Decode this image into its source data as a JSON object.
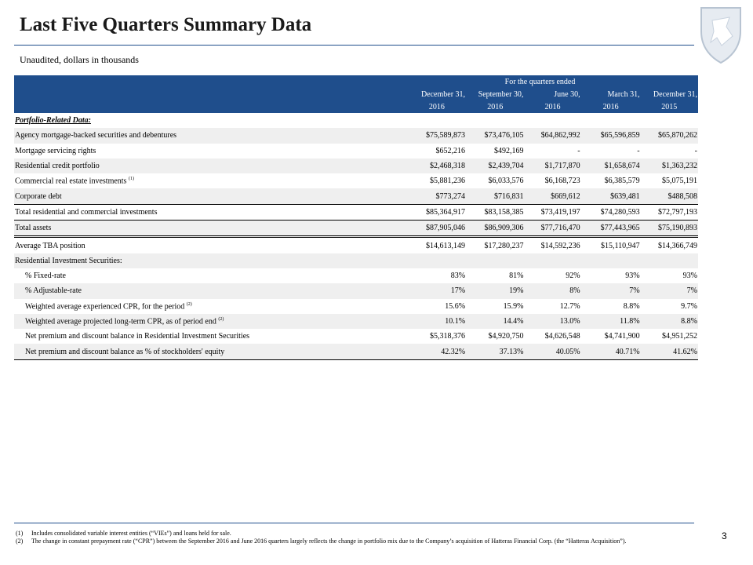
{
  "header": {
    "title": "Last Five Quarters Summary Data",
    "subtitle": "Unaudited, dollars in thousands"
  },
  "table": {
    "group_header": "For the quarters ended",
    "columns": [
      {
        "line1": "December 31,",
        "line2": "2016"
      },
      {
        "line1": "September 30,",
        "line2": "2016"
      },
      {
        "line1": "June 30,",
        "line2": "2016"
      },
      {
        "line1": "March 31,",
        "line2": "2016"
      },
      {
        "line1": "December 31,",
        "line2": "2015"
      }
    ],
    "rows": [
      {
        "label": "Portfolio-Related Data:"
      },
      {
        "label": "Agency mortgage-backed securities and debentures",
        "values": [
          "$75,589,873",
          "$73,476,105",
          "$64,862,992",
          "$65,596,859",
          "$65,870,262"
        ]
      },
      {
        "label": "Mortgage servicing rights",
        "values": [
          "$652,216",
          "$492,169",
          "-",
          "-",
          "-"
        ]
      },
      {
        "label": "Residential credit portfolio",
        "values": [
          "$2,468,318",
          "$2,439,704",
          "$1,717,870",
          "$1,658,674",
          "$1,363,232"
        ]
      },
      {
        "label": "Commercial real estate investments",
        "note": "(1)",
        "values": [
          "$5,881,236",
          "$6,033,576",
          "$6,168,723",
          "$6,385,579",
          "$5,075,191"
        ]
      },
      {
        "label": "Corporate debt",
        "values": [
          "$773,274",
          "$716,831",
          "$669,612",
          "$639,481",
          "$488,508"
        ]
      },
      {
        "label": "Total residential and commercial investments",
        "values": [
          "$85,364,917",
          "$83,158,385",
          "$73,419,197",
          "$74,280,593",
          "$72,797,193"
        ]
      },
      {
        "label": "Total assets",
        "values": [
          "$87,905,046",
          "$86,909,306",
          "$77,716,470",
          "$77,443,965",
          "$75,190,893"
        ]
      },
      {
        "label": "Average TBA position",
        "values": [
          "$14,613,149",
          "$17,280,237",
          "$14,592,236",
          "$15,110,947",
          "$14,366,749"
        ]
      },
      {
        "label": "Residential Investment Securities:"
      },
      {
        "label": "% Fixed-rate",
        "values": [
          "83%",
          "81%",
          "92%",
          "93%",
          "93%"
        ]
      },
      {
        "label": "% Adjustable-rate",
        "values": [
          "17%",
          "19%",
          "8%",
          "7%",
          "7%"
        ]
      },
      {
        "label": "Weighted average experienced CPR, for the period",
        "note": "(2)",
        "values": [
          "15.6%",
          "15.9%",
          "12.7%",
          "8.8%",
          "9.7%"
        ]
      },
      {
        "label": "Weighted average projected long-term CPR, as of period end",
        "note": "(2)",
        "values": [
          "10.1%",
          "14.4%",
          "13.0%",
          "11.8%",
          "8.8%"
        ]
      },
      {
        "label": "Net premium and discount balance in Residential Investment Securities",
        "values": [
          "$5,318,376",
          "$4,920,750",
          "$4,626,548",
          "$4,741,900",
          "$4,951,252"
        ]
      },
      {
        "label": "Net premium and discount balance as % of stockholders' equity",
        "values": [
          "42.32%",
          "37.13%",
          "40.05%",
          "40.71%",
          "41.62%"
        ]
      }
    ]
  },
  "footnotes": [
    {
      "marker": "(1)",
      "text": "Includes consolidated variable interest entities (“VIEs”) and loans held for sale."
    },
    {
      "marker": "(2)",
      "text": "The change in constant prepayment rate (“CPR”) between the September 2016 and June 2016 quarters largely reflects the change in portfolio mix due to the Company’s acquisition of Hatteras Financial Corp. (the “Hatteras Acquisition”)."
    }
  ],
  "page_number": "3"
}
